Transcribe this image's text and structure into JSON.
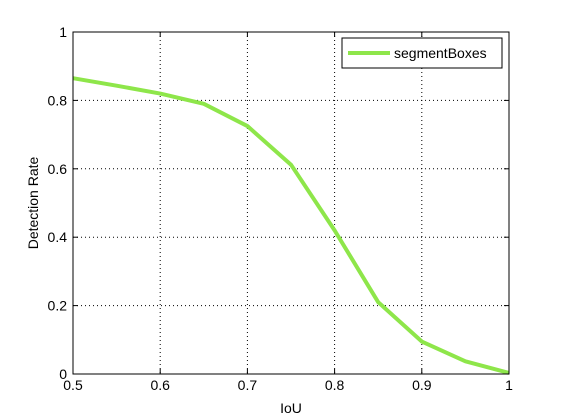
{
  "chart_data": {
    "type": "line",
    "xlabel": "IoU",
    "ylabel": "Detection Rate",
    "xlim": [
      0.5,
      1
    ],
    "ylim": [
      0,
      1
    ],
    "x_ticks": [
      "0.5",
      "0.6",
      "0.7",
      "0.8",
      "0.9",
      "1"
    ],
    "y_ticks": [
      "0",
      "0.2",
      "0.4",
      "0.6",
      "0.8",
      "1"
    ],
    "grid": true,
    "legend_position": "top-right",
    "series": [
      {
        "name": "segmentBoxes",
        "color": "#8ee64a",
        "x": [
          0.5,
          0.55,
          0.6,
          0.65,
          0.7,
          0.75,
          0.8,
          0.85,
          0.9,
          0.95,
          1.0
        ],
        "y": [
          0.865,
          0.843,
          0.82,
          0.79,
          0.725,
          0.612,
          0.42,
          0.21,
          0.095,
          0.037,
          0.003
        ]
      }
    ]
  }
}
